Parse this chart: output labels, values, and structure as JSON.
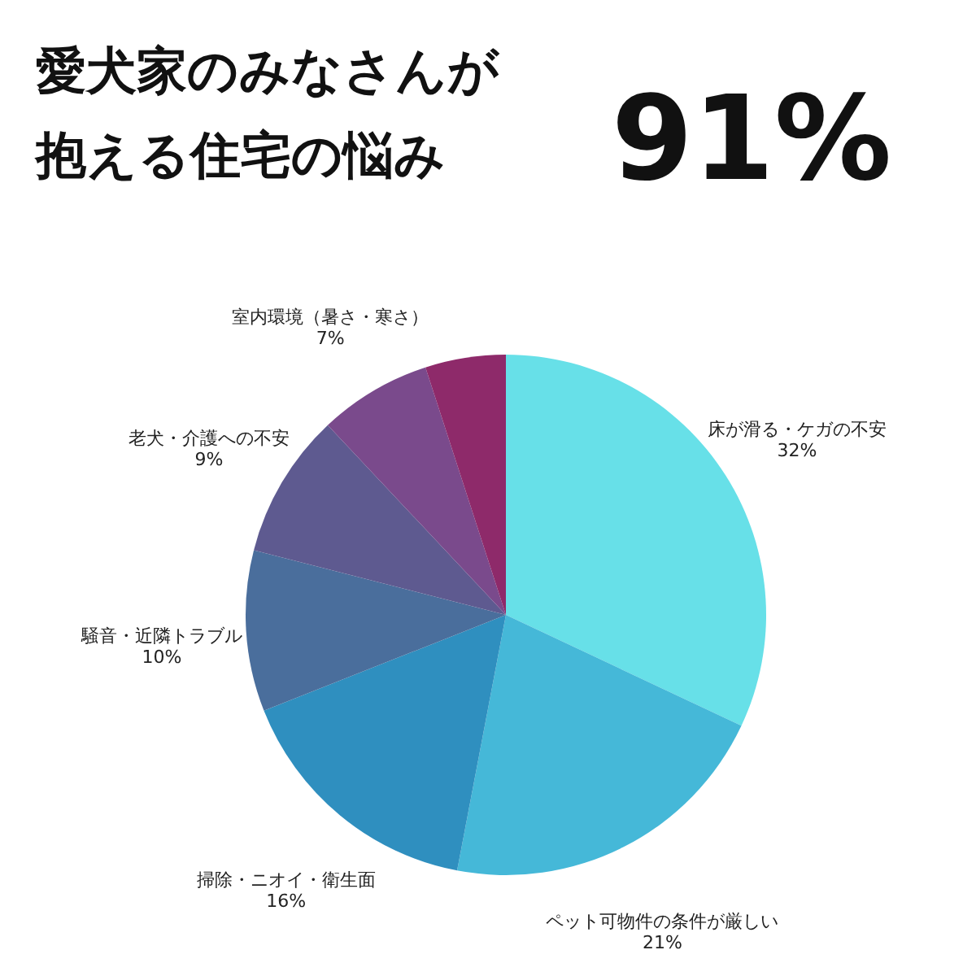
{
  "chart_data": {
    "type": "pie",
    "title": "愛犬家のみなさんが",
    "subtitle": "抱える住宅の悩み",
    "annotations": [
      "91%"
    ],
    "categories": [
      "床が滑る・ケガの不安",
      "ペット可物件の条件が厳しい",
      "掃除・ニオイ・衛生面",
      "騒音・近隣トラブル",
      "老犬・介護への不安",
      "室内環境（暑さ・寒さ）",
      null
    ],
    "values": [
      32,
      21,
      16,
      10,
      9,
      7,
      5
    ],
    "value_labels": [
      "32%",
      "21%",
      "16%",
      "10%",
      "9%",
      "7%",
      null
    ],
    "colors": [
      "#67e0e8",
      "#45b8d8",
      "#2f8fbf",
      "#4a6e9c",
      "#5e5a90",
      "#7a4a8c",
      "#8e2a6a"
    ]
  }
}
